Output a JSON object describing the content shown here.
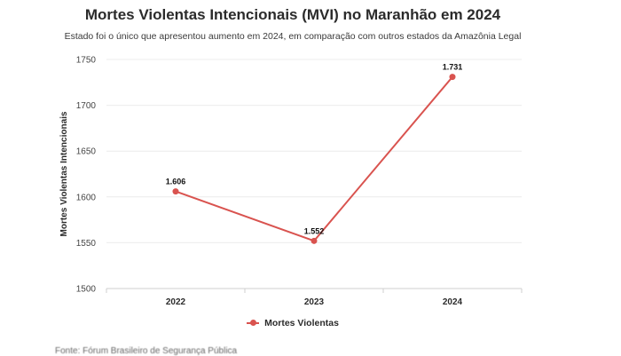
{
  "chart_data": {
    "type": "line",
    "title": "Mortes Violentas Intencionais (MVI) no Maranhão em 2024",
    "subtitle": "Estado foi o único que apresentou aumento em 2024, em comparação com outros estados da Amazônia Legal",
    "xlabel": "",
    "ylabel": "Mortes Violentas Intencionais",
    "categories": [
      "2022",
      "2023",
      "2024"
    ],
    "series": [
      {
        "name": "Mortes Violentas",
        "values": [
          1606,
          1552,
          1731
        ],
        "labels": [
          "1.606",
          "1.552",
          "1.731"
        ],
        "color": "#d9534f"
      }
    ],
    "ylim": [
      1500,
      1750
    ],
    "yticks": [
      1500,
      1550,
      1600,
      1650,
      1700,
      1750
    ],
    "grid": true,
    "legend": "bottom"
  },
  "source": "Fonte: Fórum Brasileiro de Segurança Pública"
}
